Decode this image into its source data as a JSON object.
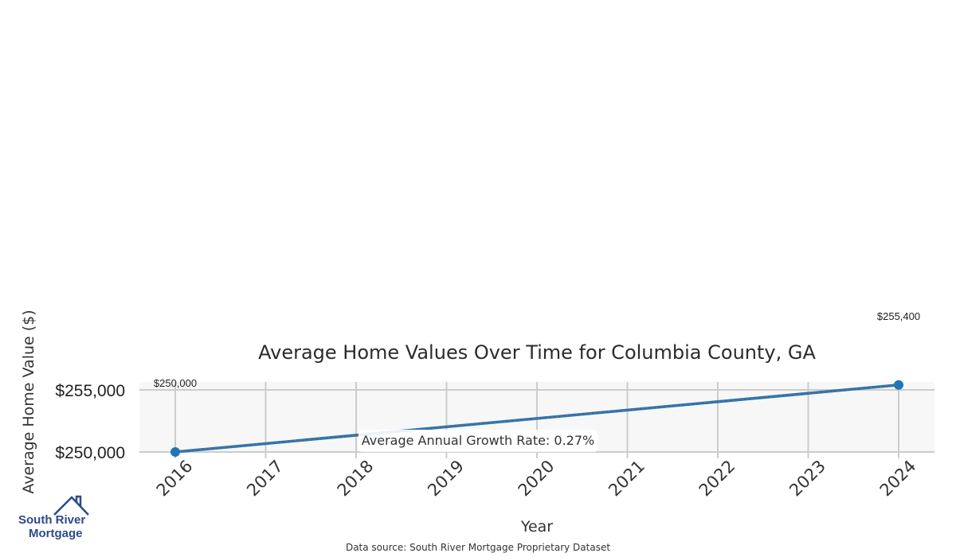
{
  "chart_data": {
    "type": "line",
    "title": "Average Home Values Over Time for Columbia County, GA",
    "xlabel": "Year",
    "ylabel": "Average Home Value ($)",
    "x": [
      2016,
      2017,
      2018,
      2019,
      2020,
      2021,
      2022,
      2023,
      2024
    ],
    "yticks": [
      250000,
      255000
    ],
    "ytick_labels": [
      "$250,000",
      "$255,000"
    ],
    "series": [
      {
        "x": [
          2016,
          2024
        ],
        "values": [
          250000,
          255400
        ],
        "labels": [
          "$250,000",
          "$255,400"
        ],
        "color": "#1f77b4"
      }
    ],
    "annotation": "Average Annual Growth Rate: 0.27%",
    "grid": true,
    "source": "Data source: South River Mortgage Proprietary Dataset"
  },
  "logo": {
    "line1": "South River",
    "line2": "Mortgage",
    "color": "#2d4a8a"
  },
  "colors": {
    "plot_bg": "#f7f7f7",
    "grid": "#cccccc",
    "line": "#1f77b4",
    "dash": "#d9534f"
  }
}
